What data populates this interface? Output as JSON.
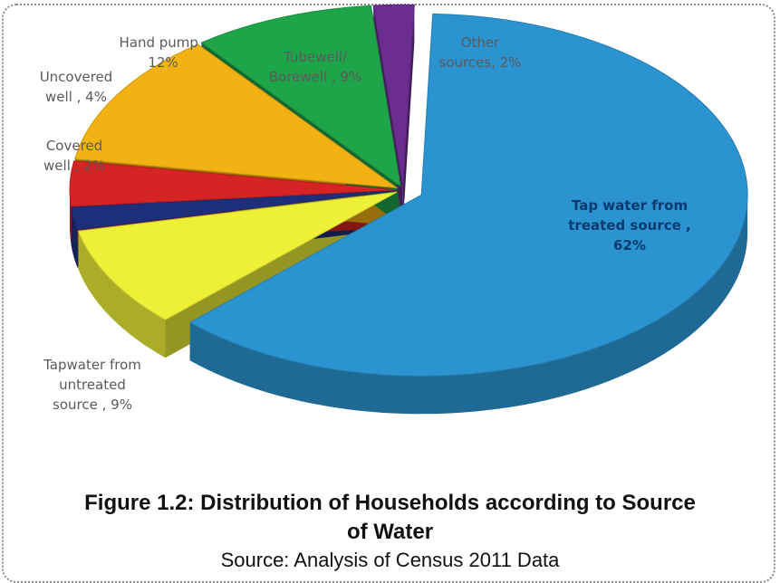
{
  "chart_data": {
    "type": "pie",
    "style": "3d-exploded",
    "unit": "%",
    "slices": [
      {
        "name": "Tap water from treated source",
        "value": 62,
        "label_lines": [
          "Tap water from",
          "treated source ,",
          "62%"
        ],
        "color": "#2b93cf"
      },
      {
        "name": "Tapwater from untreated source",
        "value": 9,
        "label_lines": [
          "Tapwater from",
          "untreated",
          "source , 9%"
        ],
        "color": "#eef038"
      },
      {
        "name": "Covered well",
        "value": 2,
        "label_lines": [
          "Covered",
          "well , 2%"
        ],
        "color": "#1d2f7a"
      },
      {
        "name": "Uncovered well",
        "value": 4,
        "label_lines": [
          "Uncovered",
          "well , 4%"
        ],
        "color": "#d62323"
      },
      {
        "name": "Hand pump",
        "value": 12,
        "label_lines": [
          "Hand pump ,",
          "12%"
        ],
        "color": "#f2b213"
      },
      {
        "name": "Tubewell/ Borewell",
        "value": 9,
        "label_lines": [
          "Tubewell/",
          "Borewell , 9%"
        ],
        "color": "#1ea54a"
      },
      {
        "name": "Other sources",
        "value": 2,
        "label_lines": [
          "Other",
          "sources, 2%"
        ],
        "color": "#6b2d8f"
      }
    ]
  },
  "figure": {
    "title_line1": "Figure 1.2: Distribution of Households according to Source",
    "title_line2": "of Water",
    "source": "Source: Analysis of Census 2011 Data"
  }
}
